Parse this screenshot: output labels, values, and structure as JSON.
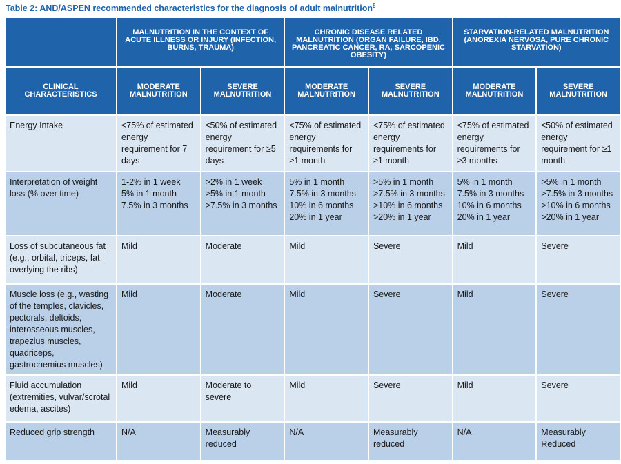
{
  "title": "Table 2: AND/ASPEN recommended characteristics for the diagnosis of adult malnutrition",
  "title_sup": "8",
  "table": {
    "group_headers": [
      "Malnutrition in the context of acute illness or injury (infection, burns, trauma)",
      "Chronic disease related malnutrition (organ failure, IBD, pancreatic cancer, RA, sarcopenic obesity)",
      "Starvation-related malnutrition (anorexia nervosa, pure chronic starvation)"
    ],
    "subheaders": [
      "Clinical characteristics",
      "Moderate malnutrition",
      "Severe malnutrition",
      "Moderate malnutrition",
      "Severe malnutrition",
      "Moderate malnutrition",
      "Severe malnutrition"
    ],
    "rows": [
      [
        "Energy Intake",
        "<75% of estimated energy requirement for 7 days",
        "≤50% of estimated energy requirement for ≥5 days",
        "<75% of estimated energy requirements for ≥1 month",
        "<75% of estimated energy requirements for ≥1 month",
        "<75% of estimated energy requirements for ≥3 months",
        "≤50% of estimated energy requirement for ≥1 month"
      ],
      [
        "Interpretation of weight loss (% over time)",
        [
          "1-2% in 1 week",
          "5% in 1 month",
          "7.5% in 3 months"
        ],
        [
          ">2% in 1 week",
          ">5% in 1 month",
          ">7.5% in 3 months"
        ],
        [
          "5% in 1 month",
          "7.5% in 3 months",
          "10% in 6 months",
          "20% in 1 year"
        ],
        [
          ">5% in 1 month",
          ">7.5% in 3 months",
          ">10% in 6 months",
          ">20% in 1 year"
        ],
        [
          "5% in 1 month",
          "7.5% in 3 months",
          "10% in 6 months",
          "20% in 1 year"
        ],
        [
          ">5% in 1 month",
          ">7.5% in 3 months",
          ">10% in 6 months",
          ">20% in 1 year"
        ]
      ],
      [
        "Loss of subcutaneous fat (e.g., orbital, triceps, fat overlying the ribs)",
        "Mild",
        "Moderate",
        "Mild",
        "Severe",
        "Mild",
        "Severe"
      ],
      [
        "Muscle loss (e.g., wasting of the temples, clavicles, pectorals, deltoids, interosseous muscles, trapezius muscles, quadriceps, gastrocnemius muscles)",
        "Mild",
        "Moderate",
        "Mild",
        "Severe",
        "Mild",
        "Severe"
      ],
      [
        "Fluid accumulation (extremities, vulvar/scrotal edema, ascites)",
        "Mild",
        "Moderate to severe",
        "Mild",
        "Severe",
        "Mild",
        "Severe"
      ],
      [
        "Reduced grip strength",
        "N/A",
        "Measurably reduced",
        "N/A",
        "Measurably reduced",
        "N/A",
        "Measurably Reduced"
      ]
    ]
  }
}
